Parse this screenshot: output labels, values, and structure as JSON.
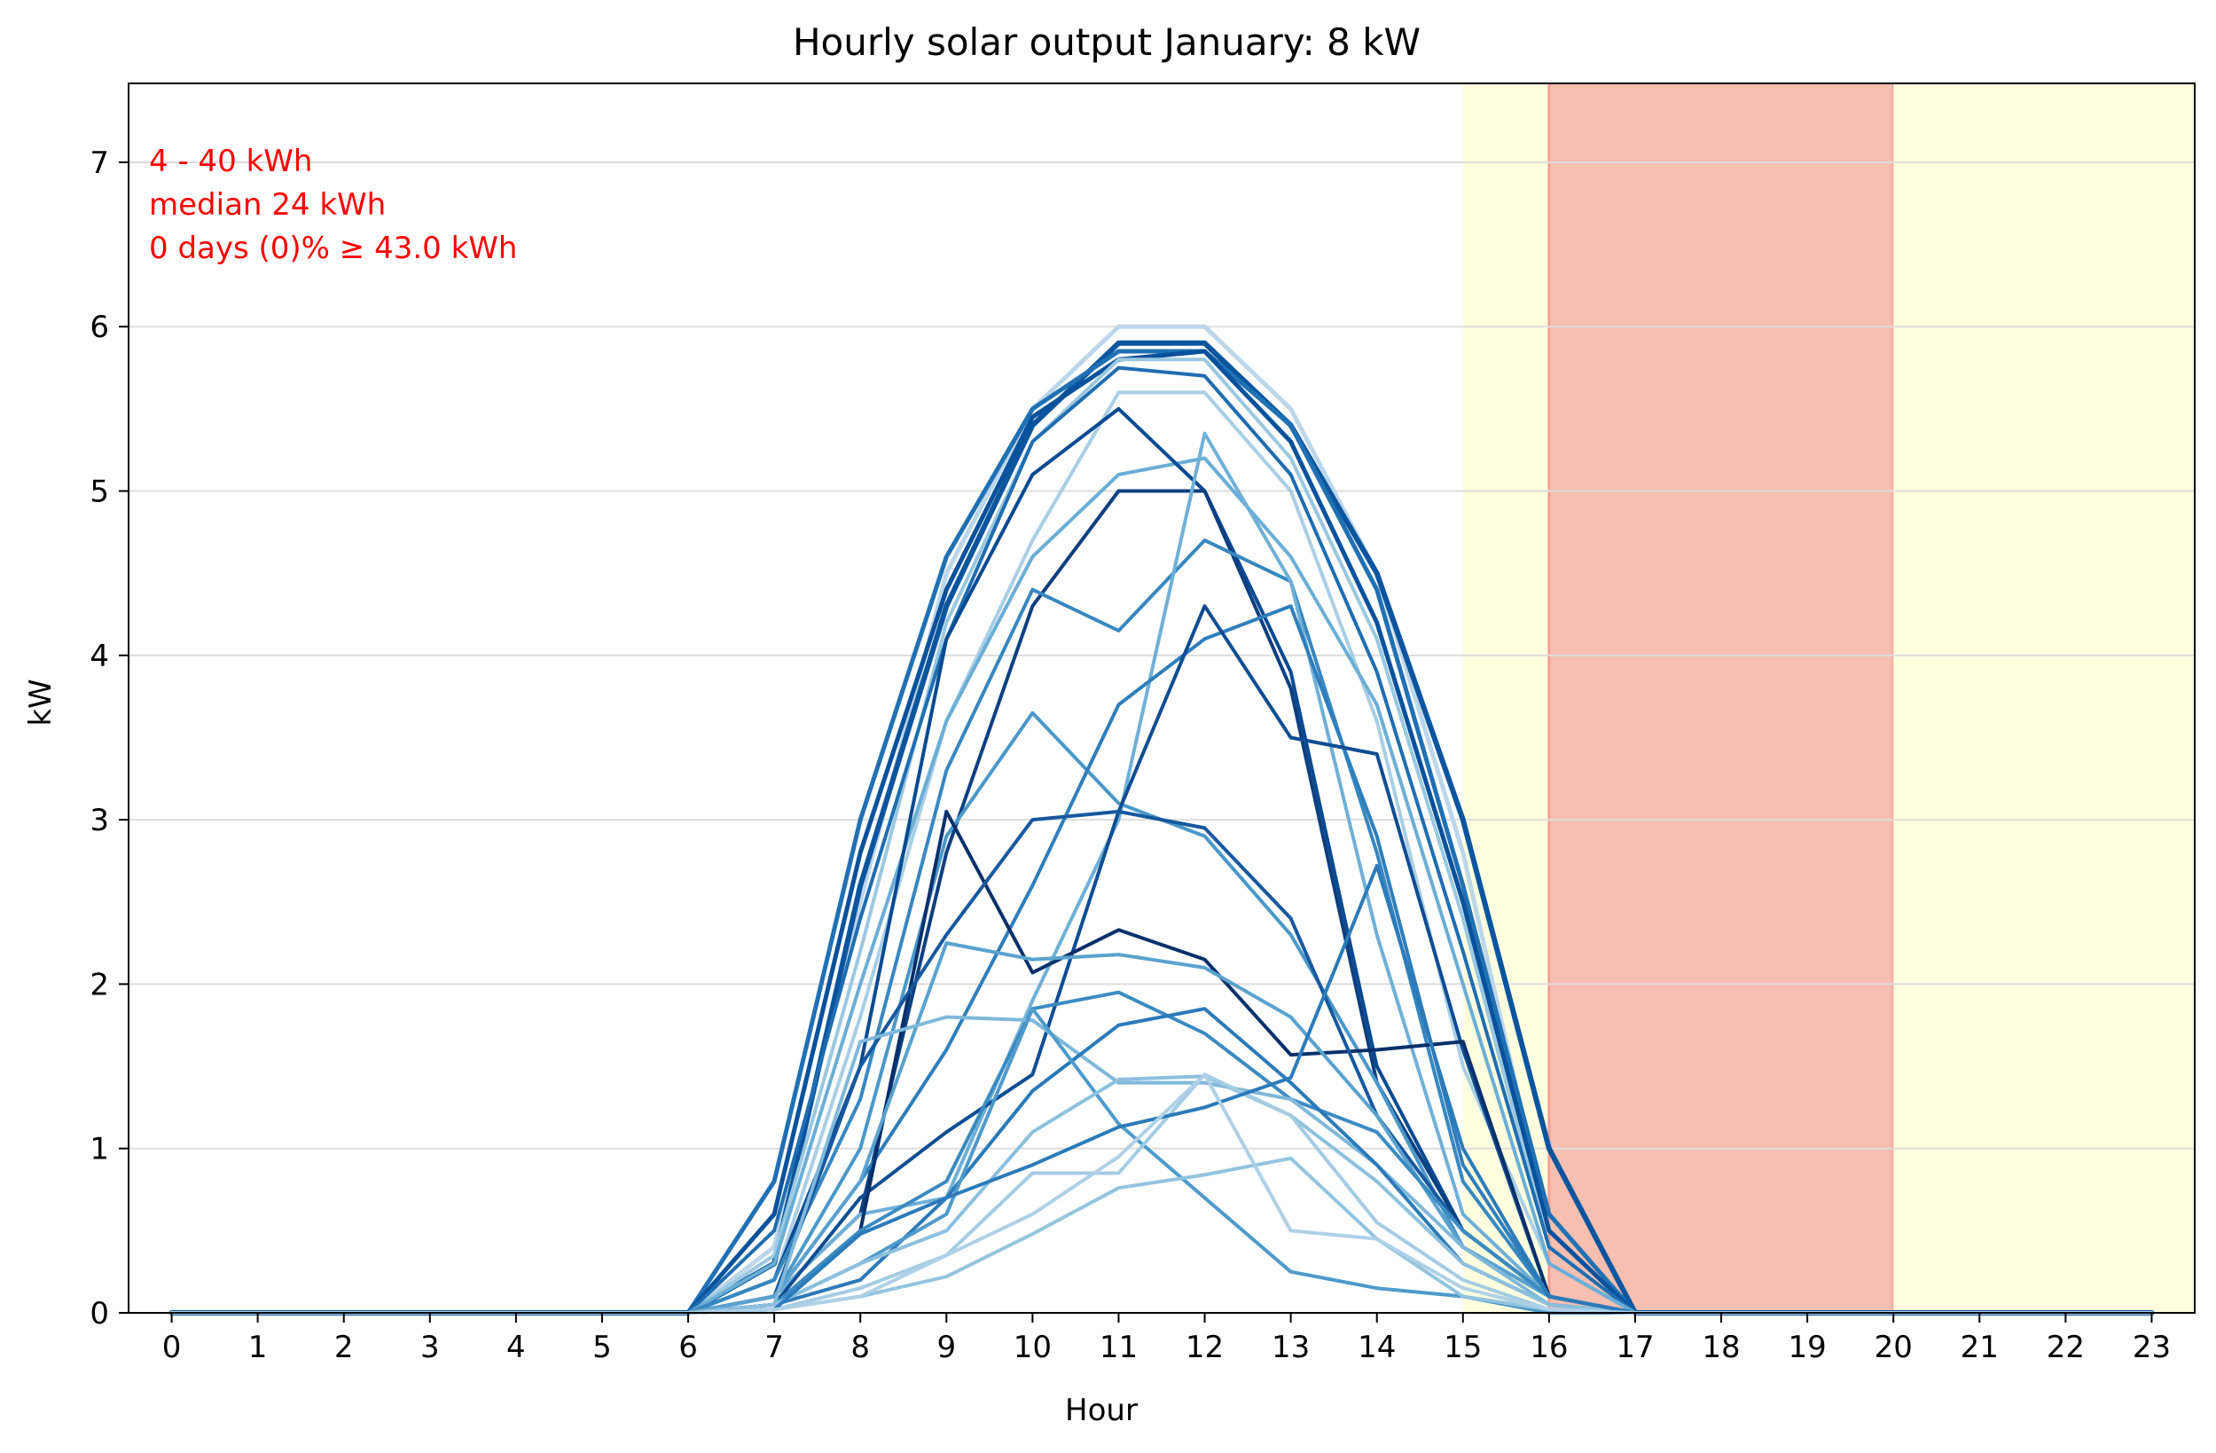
{
  "chart_data": {
    "type": "line",
    "title": "Hourly solar output January:  8 kW",
    "xlabel": "Hour",
    "ylabel": "kW",
    "xlim": [
      -0.5,
      23.5
    ],
    "ylim": [
      0,
      7.48
    ],
    "x": [
      0,
      1,
      2,
      3,
      4,
      5,
      6,
      7,
      8,
      9,
      10,
      11,
      12,
      13,
      14,
      15,
      16,
      17,
      18,
      19,
      20,
      21,
      22,
      23
    ],
    "x_ticks": [
      0,
      1,
      2,
      3,
      4,
      5,
      6,
      7,
      8,
      9,
      10,
      11,
      12,
      13,
      14,
      15,
      16,
      17,
      18,
      19,
      20,
      21,
      22,
      23
    ],
    "y_ticks": [
      0,
      1,
      2,
      3,
      4,
      5,
      6,
      7
    ],
    "grid": "horizontal",
    "line_end_hour": 23,
    "colors": {
      "offpeak_band": "#ffffe0",
      "peak_band": "#f6bfb0",
      "peak_band_edge": "#f2a093",
      "annotation": "#ff0000",
      "grid": "#dddddd"
    },
    "bands": [
      {
        "from": 15,
        "to": 16,
        "kind": "offpeak"
      },
      {
        "from": 16,
        "to": 20,
        "kind": "peak"
      },
      {
        "from": 20,
        "to": 23.5,
        "kind": "offpeak"
      }
    ],
    "annotations": [
      "4 - 40 kWh",
      "median  24 kWh",
      "0 days (0)% ≥ 43.0 kWh"
    ],
    "series": [
      {
        "color": "#bcd6ea",
        "width": 5,
        "values": [
          0,
          0,
          0,
          0,
          0,
          0,
          0,
          0.4,
          2.5,
          4.5,
          5.5,
          6.0,
          6.0,
          5.5,
          4.5,
          2.8,
          0.5,
          0,
          0,
          0,
          0,
          0,
          0,
          0
        ]
      },
      {
        "color": "#0b559f",
        "width": 6,
        "values": [
          0,
          0,
          0,
          0,
          0,
          0,
          0,
          0.3,
          2.6,
          4.3,
          5.4,
          5.9,
          5.9,
          5.4,
          4.5,
          3.0,
          1.0,
          0,
          0,
          0,
          0,
          0,
          0,
          0
        ]
      },
      {
        "color": "#2070b4",
        "width": 5,
        "values": [
          0,
          0,
          0,
          0,
          0,
          0,
          0,
          0.8,
          3.0,
          4.6,
          5.5,
          5.85,
          5.85,
          5.4,
          4.4,
          2.6,
          0.6,
          0,
          0,
          0,
          0,
          0,
          0,
          0
        ]
      },
      {
        "color": "#08519c",
        "width": 5,
        "values": [
          0,
          0,
          0,
          0,
          0,
          0,
          0,
          0.6,
          2.8,
          4.4,
          5.45,
          5.8,
          5.85,
          5.3,
          4.2,
          2.5,
          0.5,
          0,
          0,
          0,
          0,
          0,
          0,
          0
        ]
      },
      {
        "color": "#9ac8e0",
        "width": 4,
        "values": [
          0,
          0,
          0,
          0,
          0,
          0,
          0,
          0.35,
          2.2,
          4.2,
          5.3,
          5.8,
          5.8,
          5.2,
          4.1,
          2.4,
          0.4,
          0,
          0,
          0,
          0,
          0,
          0,
          0
        ]
      },
      {
        "color": "#1f6db1",
        "width": 4,
        "values": [
          0,
          0,
          0,
          0,
          0,
          0,
          0,
          0.5,
          2.4,
          4.1,
          5.3,
          5.75,
          5.7,
          5.1,
          3.9,
          2.2,
          0.4,
          0,
          0,
          0,
          0,
          0,
          0,
          0
        ]
      },
      {
        "color": "#a9cfe5",
        "width": 4,
        "values": [
          0,
          0,
          0,
          0,
          0,
          0,
          0,
          0.2,
          1.8,
          3.6,
          4.7,
          5.6,
          5.6,
          5.0,
          3.6,
          1.5,
          0.3,
          0,
          0,
          0,
          0,
          0,
          0,
          0
        ]
      },
      {
        "color": "#6aaed6",
        "width": 4,
        "values": [
          0,
          0,
          0,
          0,
          0,
          0,
          0,
          0.3,
          2.0,
          3.6,
          4.6,
          5.1,
          5.2,
          4.6,
          3.7,
          2.0,
          0.3,
          0,
          0,
          0,
          0,
          0,
          0,
          0
        ]
      },
      {
        "color": "#084a91",
        "width": 4,
        "values": [
          0,
          0,
          0,
          0,
          0,
          0,
          0,
          0.2,
          1.5,
          4.1,
          5.1,
          5.5,
          5.0,
          3.9,
          1.5,
          0.5,
          0.1,
          0,
          0,
          0,
          0,
          0,
          0,
          0
        ]
      },
      {
        "color": "#0d3f80",
        "width": 4,
        "values": [
          0,
          0,
          0,
          0,
          0,
          0,
          0,
          0.1,
          0.6,
          2.8,
          4.3,
          5.0,
          5.0,
          3.8,
          1.4,
          0.5,
          0.1,
          0,
          0,
          0,
          0,
          0,
          0,
          0
        ]
      },
      {
        "color": "#3787c0",
        "width": 4,
        "values": [
          0,
          0,
          0,
          0,
          0,
          0,
          0,
          0.2,
          1.3,
          3.3,
          4.4,
          4.15,
          4.7,
          4.45,
          2.8,
          0.8,
          0.1,
          0,
          0,
          0,
          0,
          0,
          0,
          0
        ]
      },
      {
        "color": "#4a98c9",
        "width": 4,
        "values": [
          0,
          0,
          0,
          0,
          0,
          0,
          0,
          0.1,
          1.0,
          2.9,
          3.65,
          3.1,
          2.9,
          2.3,
          1.4,
          0.4,
          0.1,
          0,
          0,
          0,
          0,
          0,
          0,
          0
        ]
      },
      {
        "color": "#6fb0d7",
        "width": 4,
        "values": [
          0,
          0,
          0,
          0,
          0,
          0,
          0,
          0.1,
          0.6,
          0.7,
          1.9,
          3.0,
          5.35,
          4.45,
          2.3,
          0.6,
          0.1,
          0,
          0,
          0,
          0,
          0,
          0,
          0
        ]
      },
      {
        "color": "#2f7ebc",
        "width": 4,
        "values": [
          0,
          0,
          0,
          0,
          0,
          0,
          0,
          0.1,
          0.8,
          1.6,
          2.6,
          3.7,
          4.1,
          4.3,
          2.9,
          0.9,
          0.1,
          0,
          0,
          0,
          0,
          0,
          0,
          0
        ]
      },
      {
        "color": "#0f4d93",
        "width": 4,
        "values": [
          0,
          0,
          0,
          0,
          0,
          0,
          0,
          0.05,
          0.7,
          1.1,
          1.45,
          3.05,
          4.3,
          3.5,
          3.4,
          1.6,
          0.1,
          0,
          0,
          0,
          0,
          0,
          0,
          0
        ]
      },
      {
        "color": "#08306b",
        "width": 4,
        "values": [
          0,
          0,
          0,
          0,
          0,
          0,
          0,
          0.05,
          0.5,
          3.05,
          2.07,
          2.33,
          2.15,
          1.57,
          1.6,
          1.65,
          0.1,
          0,
          0,
          0,
          0,
          0,
          0,
          0
        ]
      },
      {
        "color": "#17589f",
        "width": 4,
        "values": [
          0,
          0,
          0,
          0,
          0,
          0,
          0,
          0.1,
          1.5,
          2.3,
          3.0,
          3.05,
          2.95,
          2.4,
          1.2,
          0.5,
          0.1,
          0,
          0,
          0,
          0,
          0,
          0,
          0
        ]
      },
      {
        "color": "#5aa2cf",
        "width": 4,
        "values": [
          0,
          0,
          0,
          0,
          0,
          0,
          0,
          0.1,
          0.8,
          2.25,
          2.15,
          2.18,
          2.1,
          1.8,
          1.2,
          0.4,
          0.1,
          0,
          0,
          0,
          0,
          0,
          0,
          0
        ]
      },
      {
        "color": "#3b8bc2",
        "width": 4,
        "values": [
          0,
          0,
          0,
          0,
          0,
          0,
          0,
          0.05,
          0.5,
          0.8,
          1.85,
          1.95,
          1.7,
          1.3,
          1.1,
          0.5,
          0.1,
          0,
          0,
          0,
          0,
          0,
          0,
          0
        ]
      },
      {
        "color": "#7fb8da",
        "width": 4,
        "values": [
          0,
          0,
          0,
          0,
          0,
          0,
          0,
          0.05,
          1.65,
          1.8,
          1.78,
          1.4,
          1.4,
          1.3,
          0.9,
          0.4,
          0.05,
          0,
          0,
          0,
          0,
          0,
          0,
          0
        ]
      },
      {
        "color": "#2a7ab9",
        "width": 4,
        "values": [
          0,
          0,
          0,
          0,
          0,
          0,
          0,
          0.05,
          0.2,
          0.7,
          1.35,
          1.75,
          1.85,
          1.4,
          0.9,
          0.3,
          0.05,
          0,
          0,
          0,
          0,
          0,
          0,
          0
        ]
      },
      {
        "color": "#4e9acb",
        "width": 4,
        "values": [
          0,
          0,
          0,
          0,
          0,
          0,
          0,
          0.05,
          0.3,
          0.6,
          1.85,
          1.15,
          0.7,
          0.25,
          0.15,
          0.1,
          0.0,
          0,
          0,
          0,
          0,
          0,
          0,
          0
        ]
      },
      {
        "color": "#8cc0de",
        "width": 4,
        "values": [
          0,
          0,
          0,
          0,
          0,
          0,
          0,
          0.05,
          0.3,
          0.5,
          1.1,
          1.42,
          1.44,
          1.2,
          0.8,
          0.3,
          0.05,
          0,
          0,
          0,
          0,
          0,
          0,
          0
        ]
      },
      {
        "color": "#a4cce3",
        "width": 4,
        "values": [
          0,
          0,
          0,
          0,
          0,
          0,
          0,
          0.02,
          0.15,
          0.35,
          0.85,
          0.85,
          1.45,
          1.2,
          0.55,
          0.2,
          0.02,
          0,
          0,
          0,
          0,
          0,
          0,
          0
        ]
      },
      {
        "color": "#93c4df",
        "width": 4,
        "values": [
          0,
          0,
          0,
          0,
          0,
          0,
          0,
          0.02,
          0.1,
          0.22,
          0.48,
          0.76,
          0.84,
          0.94,
          0.45,
          0.1,
          0.02,
          0,
          0,
          0,
          0,
          0,
          0,
          0
        ]
      },
      {
        "color": "#2b7bba",
        "width": 4,
        "values": [
          0,
          0,
          0,
          0,
          0,
          0,
          0,
          0.02,
          0.48,
          0.7,
          0.9,
          1.13,
          1.25,
          1.43,
          2.72,
          1.0,
          0.1,
          0,
          0,
          0,
          0,
          0,
          0,
          0
        ]
      },
      {
        "color": "#aed1e7",
        "width": 4,
        "values": [
          0,
          0,
          0,
          0,
          0,
          0,
          0,
          0.02,
          0.1,
          0.35,
          0.6,
          0.95,
          1.45,
          0.5,
          0.45,
          0.15,
          0.02,
          0,
          0,
          0,
          0,
          0,
          0,
          0
        ]
      }
    ]
  }
}
